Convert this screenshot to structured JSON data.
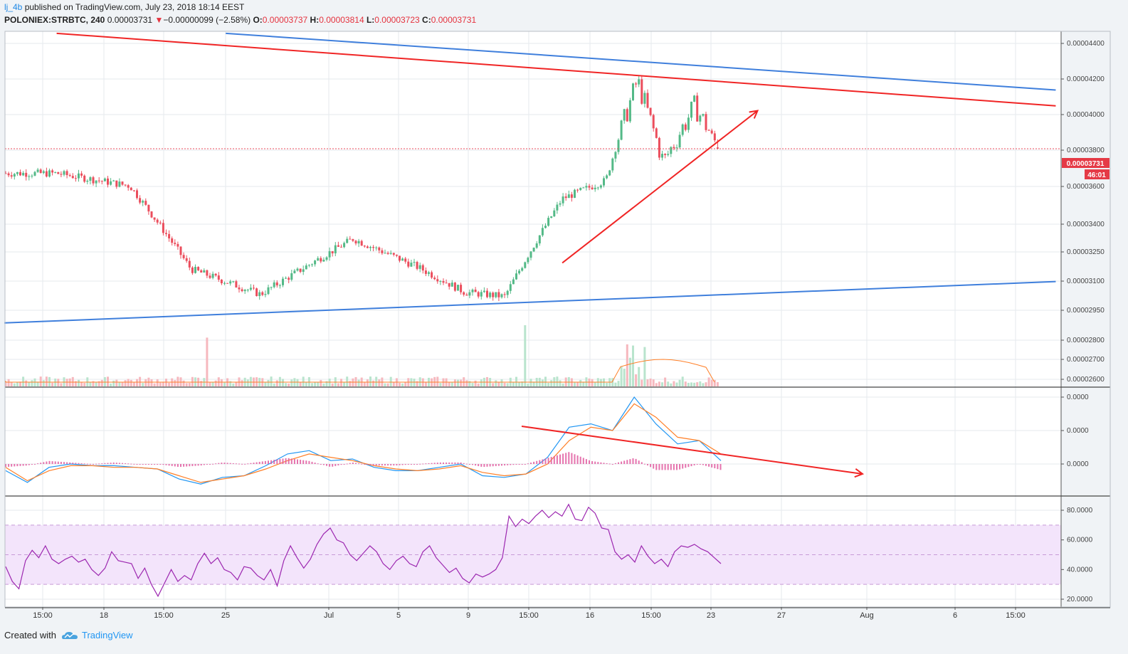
{
  "header": {
    "user": "lj_4b",
    "published": " published on TradingView.com, July 23, 2018 18:14 EEST",
    "symbol": "POLONIEX:STRBTC, 240",
    "last": "0.00003731",
    "change_arrow": "▼",
    "change": "−0.00000099 (−2.58%)",
    "o_label": "O:",
    "o": "0.00003737",
    "h_label": "H:",
    "h": "0.00003814",
    "l_label": "L:",
    "l": "0.00003723",
    "c_label": "C:",
    "c": "0.00003731"
  },
  "price_badge": "0.00003731",
  "timer_badge": "46:01",
  "footer": {
    "created": "Created with",
    "brand": "TradingView"
  },
  "colors": {
    "up": "#53b987",
    "down": "#eb4d5c",
    "trend_red": "#f02525",
    "trend_blue": "#3f7fdc",
    "macd": "#2196f3",
    "signal": "#ff7f27",
    "rsi": "#9c27b0",
    "rsi_band": "#f3e4fb"
  },
  "chart_data": [
    {
      "type": "candlestick",
      "symbol": "POLONIEX:STRBTC",
      "interval": "240",
      "y_tick_labels": [
        "0.00004400",
        "0.00004200",
        "0.00004000",
        "0.00003800",
        "0.00003600",
        "0.00003400",
        "0.00003250",
        "0.00003100",
        "0.00002950",
        "0.00002800",
        "0.00002700",
        "0.00002600"
      ],
      "y_ticks": [
        4.4e-05,
        4.2e-05,
        4e-05,
        3.8e-05,
        3.6e-05,
        3.4e-05,
        3.25e-05,
        3.1e-05,
        2.95e-05,
        2.8e-05,
        2.7e-05,
        2.6e-05
      ],
      "y_scale": "log",
      "ylim": [
        2.58e-05,
        4.54e-05
      ],
      "x_tick_labels": [
        "15:00",
        "18",
        "15:00",
        "25",
        "Jul",
        "5",
        "9",
        "15:00",
        "16",
        "15:00",
        "23",
        "27",
        "Aug",
        "6",
        "15:00"
      ],
      "series_summary": [
        {
          "date": "Jun 17",
          "close": 3.59e-05
        },
        {
          "date": "Jun 21",
          "close": 3.52e-05
        },
        {
          "date": "Jun 24",
          "close": 3.09e-05
        },
        {
          "date": "Jun 28",
          "close": 2.97e-05
        },
        {
          "date": "Jul 3",
          "close": 3.24e-05
        },
        {
          "date": "Jul 7",
          "close": 3.1e-05
        },
        {
          "date": "Jul 10",
          "close": 2.98e-05
        },
        {
          "date": "Jul 12",
          "close": 2.96e-05
        },
        {
          "date": "Jul 15",
          "close": 3.45e-05
        },
        {
          "date": "Jul 18",
          "close": 3.55e-05
        },
        {
          "date": "Jul 20",
          "close": 4.15e-05
        },
        {
          "date": "Jul 21",
          "close": 3.65e-05
        },
        {
          "date": "Jul 22",
          "close": 3.99e-05
        },
        {
          "date": "Jul 23",
          "close": 3.731e-05
        }
      ],
      "last_close": 3.731e-05,
      "trendlines": [
        {
          "color": "red",
          "from": {
            "date": "Jun 17",
            "price": 4.47e-05
          },
          "to": {
            "date": "Aug 8",
            "price": 3.99e-05
          }
        },
        {
          "color": "blue",
          "from": {
            "date": "Jun 26",
            "price": 4.47e-05
          },
          "to": {
            "date": "Aug 8",
            "price": 4.09e-05
          }
        },
        {
          "color": "blue",
          "from": {
            "date": "Jun 15",
            "price": 2.84e-05
          },
          "to": {
            "date": "Aug 8",
            "price": 3.03e-05
          }
        },
        {
          "color": "red",
          "arrow": true,
          "from": {
            "date": "Jul 15",
            "price": 3.12e-05
          },
          "to": {
            "date": "Jul 25",
            "price": 3.96e-05
          }
        }
      ]
    },
    {
      "type": "line",
      "indicator": "MACD",
      "y_tick_labels": [
        "0.0000",
        "0.0000",
        "0.0000"
      ],
      "series": [
        {
          "values": [
            -0.2,
            -0.55,
            -0.1,
            0,
            -0.05,
            -0.05,
            -0.1,
            -0.15,
            -0.45,
            -0.6,
            -0.4,
            -0.35,
            -0.05,
            0.3,
            0.4,
            0.1,
            0.15,
            -0.1,
            -0.2,
            -0.2,
            -0.1,
            0,
            -0.35,
            -0.4,
            -0.3,
            0.2,
            1.1,
            1.2,
            1.0,
            2.0,
            1.2,
            0.6,
            0.7,
            0.1
          ]
        },
        {
          "values": [
            -0.1,
            -0.5,
            -0.2,
            -0.05,
            -0.05,
            -0.1,
            -0.1,
            -0.15,
            -0.35,
            -0.55,
            -0.45,
            -0.35,
            -0.15,
            0.1,
            0.3,
            0.2,
            0.1,
            -0.05,
            -0.15,
            -0.2,
            -0.15,
            -0.05,
            -0.25,
            -0.35,
            -0.3,
            0.0,
            0.7,
            1.1,
            1.0,
            1.8,
            1.4,
            0.8,
            0.7,
            0.3
          ]
        }
      ],
      "trendline": {
        "arrow": true,
        "from": {
          "date": "Jul 12"
        },
        "to": {
          "date": "Jul 26"
        }
      }
    },
    {
      "type": "line",
      "indicator": "RSI",
      "y_tick_labels": [
        "80.0000",
        "60.0000",
        "40.0000",
        "20.0000"
      ],
      "y_ticks": [
        80,
        60,
        40,
        20
      ],
      "ylim": [
        18,
        86
      ],
      "band": [
        30,
        70
      ],
      "series": [
        {
          "values": [
            42,
            32,
            27,
            46,
            53,
            48,
            56,
            47,
            44,
            47,
            49,
            45,
            47,
            40,
            36,
            41,
            52,
            46,
            45,
            44,
            34,
            41,
            30,
            22,
            31,
            40,
            32,
            36,
            33,
            44,
            51,
            44,
            48,
            40,
            38,
            33,
            42,
            41,
            36,
            33,
            40,
            29,
            46,
            56,
            48,
            41,
            47,
            57,
            64,
            68,
            60,
            58,
            50,
            46,
            51,
            56,
            52,
            44,
            40,
            46,
            49,
            44,
            42,
            52,
            56,
            48,
            43,
            38,
            41,
            34,
            31,
            37,
            35,
            37,
            40,
            48,
            76,
            69,
            74,
            71,
            76,
            80,
            75,
            79,
            76,
            84,
            74,
            73,
            82,
            78,
            68,
            67,
            52,
            47,
            50,
            45,
            56,
            49,
            44,
            47,
            42,
            52,
            56,
            55,
            57,
            54,
            52,
            48,
            44
          ]
        }
      ]
    }
  ]
}
